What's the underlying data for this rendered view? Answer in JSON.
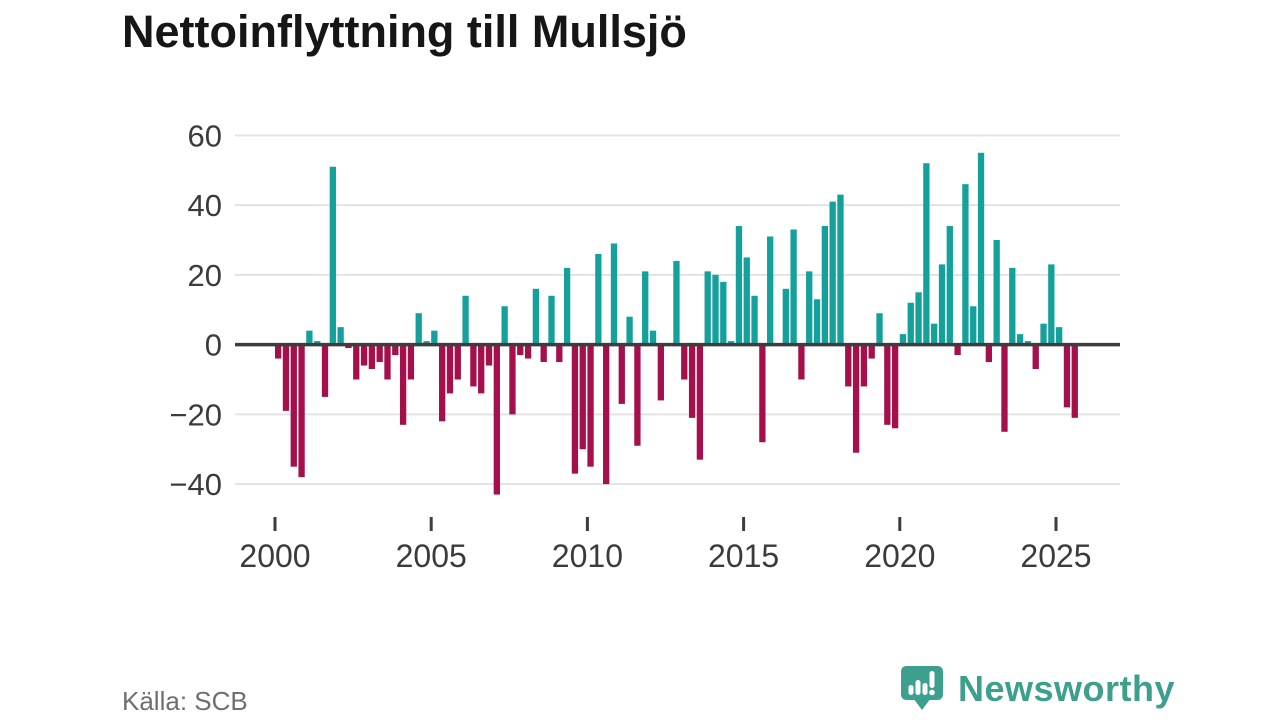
{
  "title": "Nettoinflyttning till Mullsjö",
  "source": "Källa: SCB",
  "brand": {
    "name": "Newsworthy"
  },
  "colors": {
    "positive": "#14a09b",
    "negative": "#a50f4b",
    "brand": "#3da08e",
    "grid": "#e3e3e3",
    "zero_line": "#3d3d3d",
    "axis_text": "#3b3b3b",
    "title_text": "#161616",
    "source_text": "#6e6e73"
  },
  "chart_data": {
    "type": "bar",
    "title": "Nettoinflyttning till Mullsjö",
    "frequency": "quarterly",
    "start": {
      "year": 2000,
      "quarter": 1
    },
    "end": {
      "year": 2025,
      "quarter": 3
    },
    "values": [
      -4,
      -19,
      -35,
      -38,
      4,
      1,
      -15,
      51,
      5,
      -1,
      -10,
      -6,
      -7,
      -5,
      -10,
      -3,
      -23,
      -10,
      9,
      1,
      4,
      -22,
      -14,
      -10,
      14,
      -12,
      -14,
      -6,
      -43,
      11,
      -20,
      -3,
      -4,
      16,
      -5,
      14,
      -5,
      22,
      -37,
      -30,
      -35,
      26,
      -40,
      29,
      -17,
      8,
      -29,
      21,
      4,
      -16,
      0,
      24,
      -10,
      -21,
      -33,
      21,
      20,
      18,
      1,
      34,
      25,
      14,
      -28,
      31,
      0,
      16,
      33,
      -10,
      21,
      13,
      34,
      41,
      43,
      -12,
      -31,
      -12,
      -4,
      9,
      -23,
      -24,
      3,
      12,
      15,
      52,
      6,
      23,
      34,
      -3,
      46,
      11,
      55,
      -5,
      30,
      -25,
      22,
      3,
      1,
      -7,
      6,
      23,
      5,
      -18,
      -21
    ],
    "x_tick_years": [
      2000,
      2005,
      2010,
      2015,
      2020,
      2025
    ],
    "x_tick_labels": [
      "2000",
      "2005",
      "2010",
      "2015",
      "2020",
      "2025"
    ],
    "y_ticks": [
      60,
      40,
      20,
      0,
      -20,
      -40
    ],
    "ylim": [
      -48,
      62
    ],
    "xlabel": "",
    "ylabel": "",
    "grid": "horizontal",
    "legend": "none"
  }
}
